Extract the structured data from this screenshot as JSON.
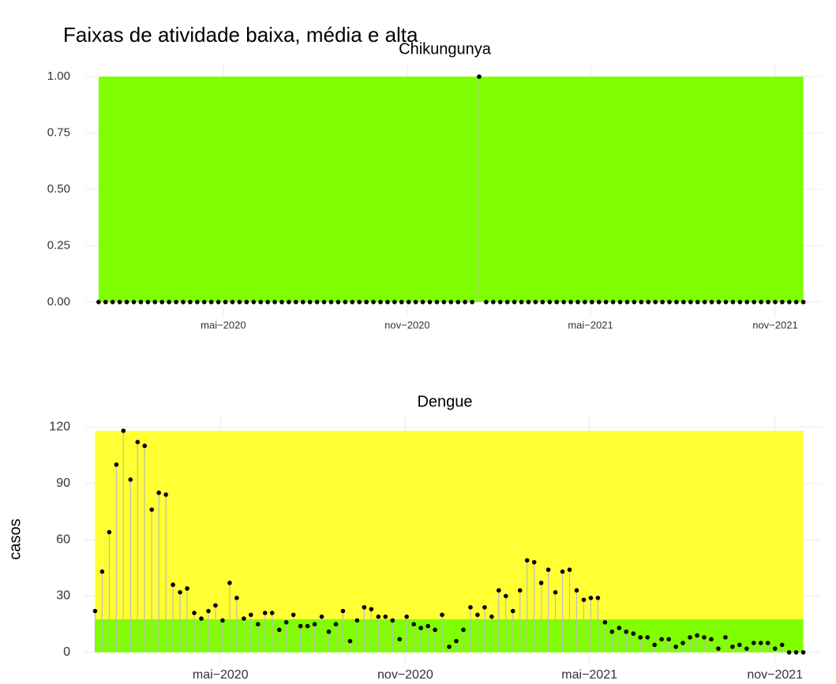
{
  "title": "Faixas de atividade baixa, média e alta",
  "chart_data": [
    {
      "type": "lollipop",
      "title": "Chikungunya",
      "categories": [
        null,
        null,
        null,
        null,
        null,
        null,
        null,
        null,
        null,
        null,
        null,
        null,
        null,
        null,
        null,
        null,
        null,
        null,
        null,
        null,
        null,
        null,
        null,
        null,
        null,
        null,
        null,
        null,
        null,
        null,
        null,
        null,
        null,
        null,
        null,
        null,
        null,
        null,
        null,
        null,
        null,
        null,
        null,
        null,
        null,
        null,
        null,
        null,
        null,
        null,
        null,
        null,
        null,
        null,
        null,
        null,
        null,
        null,
        null,
        null,
        null,
        null,
        null,
        null,
        null,
        null,
        null,
        null,
        null,
        null,
        null,
        null,
        null,
        null,
        null,
        null,
        null,
        null,
        null,
        null,
        null,
        null,
        null,
        null,
        null,
        null,
        null,
        null,
        null,
        null,
        null,
        null,
        null,
        null,
        null,
        null,
        null,
        null,
        null,
        null,
        null
      ],
      "values": [
        0,
        0,
        0,
        0,
        0,
        0,
        0,
        0,
        0,
        0,
        0,
        0,
        0,
        0,
        0,
        0,
        0,
        0,
        0,
        0,
        0,
        0,
        0,
        0,
        0,
        0,
        0,
        0,
        0,
        0,
        0,
        0,
        0,
        0,
        0,
        0,
        0,
        0,
        0,
        0,
        0,
        0,
        0,
        0,
        0,
        0,
        0,
        0,
        0,
        0,
        0,
        0,
        0,
        0,
        1,
        0,
        0,
        0,
        0,
        0,
        0,
        0,
        0,
        0,
        0,
        0,
        0,
        0,
        0,
        0,
        0,
        0,
        0,
        0,
        0,
        0,
        0,
        0,
        0,
        0,
        0,
        0,
        0,
        0,
        0,
        0,
        0,
        0,
        0,
        0,
        0,
        0,
        0,
        0,
        0,
        0,
        0,
        0,
        0,
        0,
        0
      ],
      "color": "#000000",
      "bands": [
        {
          "ymin": 0,
          "ymax": 1,
          "color": "#7fff00"
        }
      ],
      "xlim": [
        -2,
        102.5
      ],
      "xticks": [
        {
          "value": 17.7,
          "label": "mai−2020"
        },
        {
          "value": 43.8,
          "label": "nov−2020"
        },
        {
          "value": 69.8,
          "label": "mai−2021"
        },
        {
          "value": 96,
          "label": "nov−2021"
        }
      ],
      "ylim": [
        -0.06,
        1.06
      ],
      "yticks": [
        {
          "value": 0,
          "label": "0.00"
        },
        {
          "value": 0.25,
          "label": "0.25"
        },
        {
          "value": 0.5,
          "label": "0.50"
        },
        {
          "value": 0.75,
          "label": "0.75"
        },
        {
          "value": 1,
          "label": "1.00"
        }
      ],
      "grid": true
    },
    {
      "type": "lollipop",
      "title": "Dengue",
      "ylabel": "casos",
      "categories": [
        null,
        null,
        null,
        null,
        null,
        null,
        null,
        null,
        null,
        null,
        null,
        null,
        null,
        null,
        null,
        null,
        null,
        null,
        null,
        null,
        null,
        null,
        null,
        null,
        null,
        null,
        null,
        null,
        null,
        null,
        null,
        null,
        null,
        null,
        null,
        null,
        null,
        null,
        null,
        null,
        null,
        null,
        null,
        null,
        null,
        null,
        null,
        null,
        null,
        null,
        null,
        null,
        null,
        null,
        null,
        null,
        null,
        null,
        null,
        null,
        null,
        null,
        null,
        null,
        null,
        null,
        null,
        null,
        null,
        null,
        null,
        null,
        null,
        null,
        null,
        null,
        null,
        null,
        null,
        null,
        null,
        null,
        null,
        null,
        null,
        null,
        null,
        null,
        null,
        null,
        null,
        null,
        null,
        null,
        null,
        null,
        null,
        null,
        null,
        null,
        null
      ],
      "values": [
        22,
        43,
        64,
        100,
        118,
        92,
        112,
        110,
        76,
        85,
        84,
        36,
        32,
        34,
        21,
        18,
        22,
        25,
        17,
        37,
        29,
        18,
        20,
        15,
        21,
        21,
        12,
        16,
        20,
        14,
        14,
        15,
        19,
        11,
        15,
        22,
        6,
        17,
        24,
        23,
        19,
        19,
        17,
        7,
        19,
        15,
        13,
        14,
        12,
        20,
        3,
        6,
        12,
        24,
        20,
        24,
        19,
        33,
        30,
        22,
        33,
        49,
        48,
        37,
        44,
        32,
        43,
        44,
        33,
        28,
        29,
        29,
        16,
        11,
        13,
        11,
        10,
        8,
        8,
        4,
        7,
        7,
        3,
        5,
        8,
        9,
        8,
        7,
        2,
        8,
        3,
        4,
        2,
        5,
        5,
        5,
        2,
        4,
        0,
        0,
        0
      ],
      "color": "#000000",
      "bands": [
        {
          "ymin": 0,
          "ymax": 17.6,
          "color": "#7fff00"
        },
        {
          "ymin": 17.6,
          "ymax": 118,
          "color": "#ffff33"
        }
      ],
      "xlim": [
        -1.5,
        102.5
      ],
      "xticks": [
        {
          "value": 17.7,
          "label": "mai−2020"
        },
        {
          "value": 43.8,
          "label": "nov−2020"
        },
        {
          "value": 69.8,
          "label": "mai−2021"
        },
        {
          "value": 96,
          "label": "nov−2021"
        }
      ],
      "ylim": [
        -5.5,
        126
      ],
      "yticks": [
        0,
        30,
        60,
        90,
        120
      ],
      "grid": true
    }
  ]
}
